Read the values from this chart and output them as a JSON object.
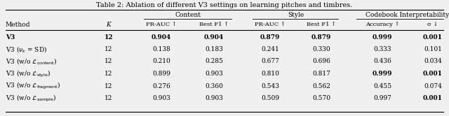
{
  "title": "Table 2: Ablation of different V3 settings on learning pitches and timbres.",
  "group_labels": [
    "Content",
    "Style",
    "Codebook Interpretability"
  ],
  "sub_headers": [
    "PR-AUC ↑",
    "Best F1 ↑",
    "PR-AUC ↑",
    "Best F1 ↑",
    "Accuracy ↑",
    "σ ↓"
  ],
  "method_header": "Method",
  "k_header": "K",
  "rows": [
    [
      "V3",
      "12",
      "0.904",
      "0.904",
      "0.879",
      "0.879",
      "0.999",
      "0.001"
    ],
    [
      "V3 ($\\nu_k$ = SD)",
      "12",
      "0.138",
      "0.183",
      "0.241",
      "0.330",
      "0.333",
      "0.101"
    ],
    [
      "V3 (w/o $\\mathcal{L}_{\\mathrm{content}}$)",
      "12",
      "0.210",
      "0.285",
      "0.677",
      "0.696",
      "0.436",
      "0.034"
    ],
    [
      "V3 (w/o $\\mathcal{L}_{\\mathrm{style}}$)",
      "12",
      "0.899",
      "0.903",
      "0.810",
      "0.817",
      "0.999",
      "0.001"
    ],
    [
      "V3 (w/o $\\mathcal{L}_{\\mathrm{fragment}}$)",
      "12",
      "0.276",
      "0.360",
      "0.543",
      "0.562",
      "0.455",
      "0.074"
    ],
    [
      "V3 (w/o $\\mathcal{L}_{\\mathrm{sample}}$)",
      "12",
      "0.903",
      "0.903",
      "0.509",
      "0.570",
      "0.997",
      "0.001"
    ]
  ],
  "bold": [
    [
      true,
      true,
      true,
      true,
      true,
      true,
      true,
      true
    ],
    [
      false,
      false,
      false,
      false,
      false,
      false,
      false,
      false
    ],
    [
      false,
      false,
      false,
      false,
      false,
      false,
      false,
      false
    ],
    [
      false,
      false,
      false,
      false,
      false,
      false,
      true,
      true
    ],
    [
      false,
      false,
      false,
      false,
      false,
      false,
      false,
      false
    ],
    [
      false,
      false,
      false,
      false,
      false,
      false,
      false,
      true
    ]
  ],
  "figsize": [
    6.4,
    1.66
  ],
  "dpi": 100,
  "fontsize_title": 7.0,
  "fontsize_header": 6.5,
  "fontsize_data": 6.5,
  "bg_color": "#f0f0f0",
  "text_color": "#000000",
  "line_color": "#000000"
}
